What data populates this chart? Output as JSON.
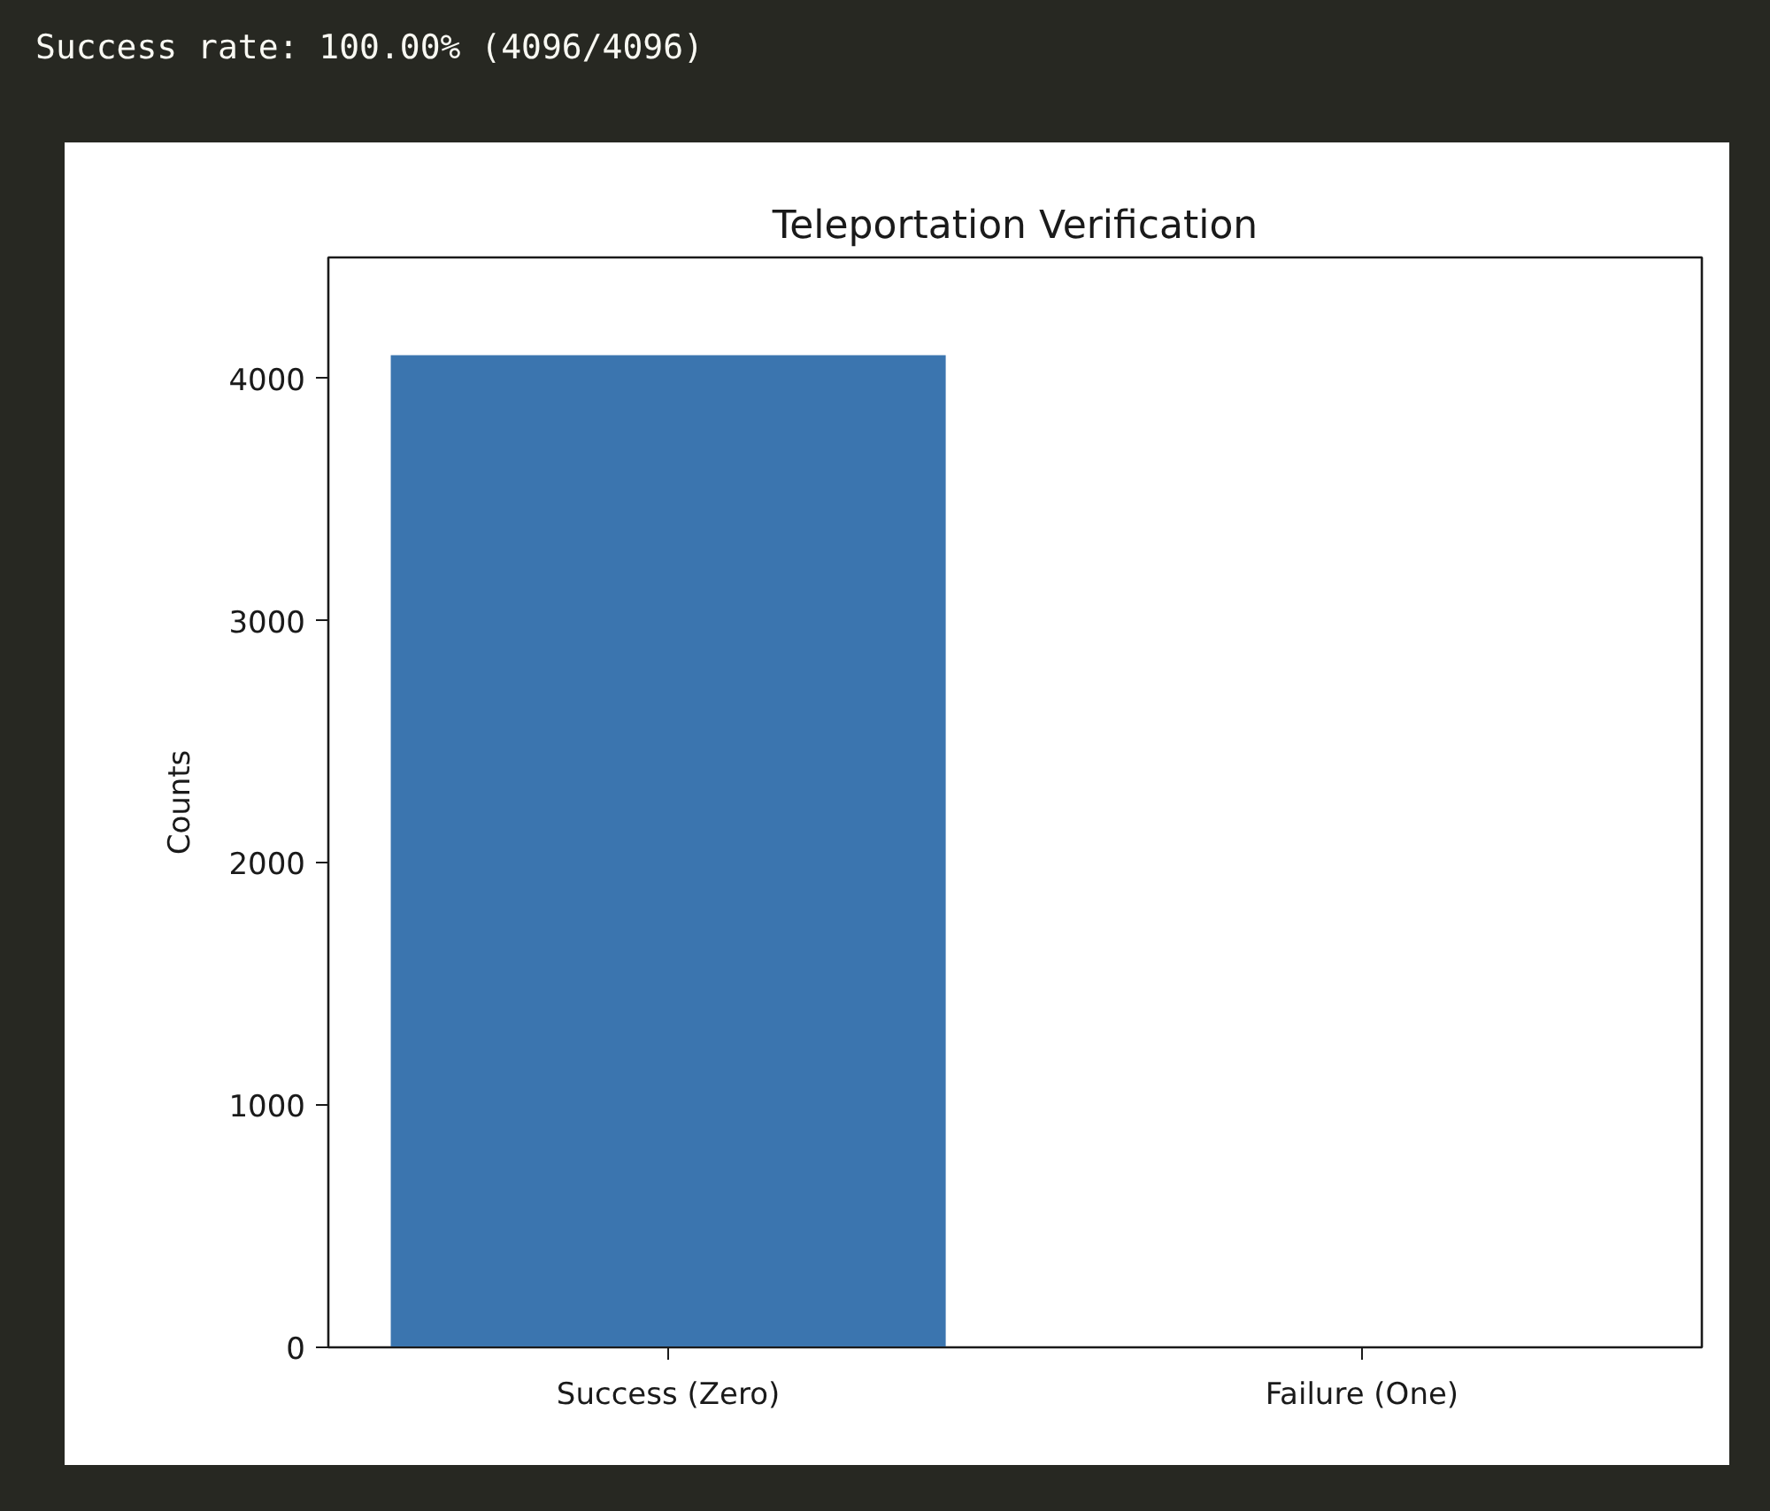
{
  "chart_data": {
    "type": "bar",
    "title": "Teleportation Verification",
    "ylabel": "Counts",
    "categories": [
      "Success (Zero)",
      "Failure (One)"
    ],
    "values": [
      4096,
      0
    ],
    "color": "#3b75af",
    "ylim": [
      0,
      4500
    ],
    "yticks": [
      0,
      1000,
      2000,
      3000,
      4000
    ],
    "grid": false,
    "annotations": [
      "Success rate: 100.00% (4096/4096)"
    ]
  }
}
